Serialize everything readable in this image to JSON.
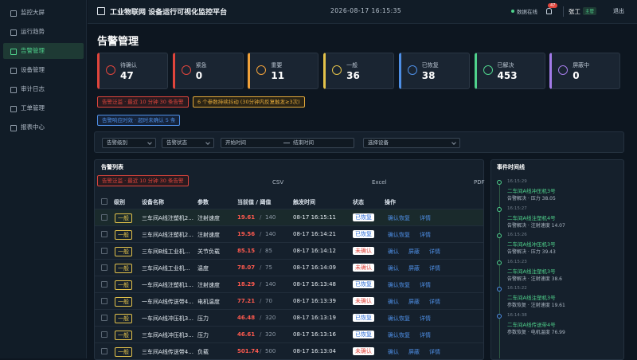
{
  "sidebar": {
    "items": [
      "监控大屏",
      "运行趋势",
      "告警管理",
      "设备管理",
      "审计日志",
      "工单管理",
      "报表中心"
    ]
  },
  "header": {
    "title": "工业物联网 设备运行可视化监控平台",
    "datetime": "2026-08-17 16:15:35",
    "status": "数据在线",
    "badge": 47,
    "user": "张工",
    "role": "主管",
    "logout": "退出"
  },
  "page": {
    "title": "告警管理"
  },
  "cards": [
    {
      "label": "待确认",
      "value": 47
    },
    {
      "label": "紧急",
      "value": 0
    },
    {
      "label": "重要",
      "value": 11
    },
    {
      "label": "一般",
      "value": 36
    },
    {
      "label": "已恢复",
      "value": 38
    },
    {
      "label": "已解决",
      "value": 453
    },
    {
      "label": "屏蔽中",
      "value": 0
    }
  ],
  "notices": [
    "告警泛滥 · 最近 10 分钟 30 条告警",
    "6 个参数持续抖动 (30分钟内反复触发≥3次)",
    "告警响应时效 · 超时未确认 5 条"
  ],
  "filters": {
    "level": "告警级别",
    "status": "告警状态",
    "start": "开始时间",
    "end": "结束时间",
    "device": "选择设备"
  },
  "alarm_table": {
    "title": "告警列表",
    "banner": "告警泛滥 · 最近 10 分钟 30 条告警",
    "exports": [
      "CSV",
      "Excel",
      "PDF"
    ],
    "columns": [
      "级别",
      "设备名称",
      "参数",
      "当前值 / 阈值",
      "触发时间",
      "状态",
      "操作"
    ],
    "rows": [
      {
        "level": "一般",
        "device": "三车间A线注塑机2...",
        "param": "注射速度",
        "current": 19.61,
        "threshold": 140,
        "time": "08-17 16:15:11",
        "status": "已恢复",
        "actions": [
          "确认恢复",
          "详情"
        ]
      },
      {
        "level": "一般",
        "device": "三车间A线注塑机2...",
        "param": "注射速度",
        "current": 19.56,
        "threshold": 140,
        "time": "08-17 16:14:21",
        "status": "已恢复",
        "actions": [
          "确认恢复",
          "详情"
        ]
      },
      {
        "level": "一般",
        "device": "三车间B线工业机...",
        "param": "关节负载",
        "current": 85.15,
        "threshold": 85,
        "time": "08-17 16:14:12",
        "status": "未确认",
        "actions": [
          "确认",
          "屏蔽",
          "详情"
        ]
      },
      {
        "level": "一般",
        "device": "三车间A线工业机...",
        "param": "温度",
        "current": 78.07,
        "threshold": 75,
        "time": "08-17 16:14:09",
        "status": "未确认",
        "actions": [
          "确认",
          "屏蔽",
          "详情"
        ]
      },
      {
        "level": "一般",
        "device": "一车间A线注塑机1...",
        "param": "注射速度",
        "current": 18.29,
        "threshold": 140,
        "time": "08-17 16:13:48",
        "status": "已恢复",
        "actions": [
          "确认恢复",
          "详情"
        ]
      },
      {
        "level": "一般",
        "device": "一车间A线传送带4...",
        "param": "电机温度",
        "current": 77.21,
        "threshold": 70,
        "time": "08-17 16:13:39",
        "status": "未确认",
        "actions": [
          "确认",
          "屏蔽",
          "详情"
        ]
      },
      {
        "level": "一般",
        "device": "一车间A线冲压机3...",
        "param": "压力",
        "current": 46.48,
        "threshold": 320,
        "time": "08-17 16:13:19",
        "status": "已恢复",
        "actions": [
          "确认恢复",
          "详情"
        ]
      },
      {
        "level": "一般",
        "device": "三车间A线冲压机3...",
        "param": "压力",
        "current": 46.61,
        "threshold": 320,
        "time": "08-17 16:13:16",
        "status": "已恢复",
        "actions": [
          "确认恢复",
          "详情"
        ]
      },
      {
        "level": "一般",
        "device": "三车间A线传送带4...",
        "param": "负载",
        "current": 501.74,
        "threshold": 500,
        "time": "08-17 16:13:04",
        "status": "未确认",
        "actions": [
          "确认",
          "屏蔽",
          "详情"
        ]
      }
    ]
  },
  "timeline": {
    "title": "事件时间线",
    "events": [
      {
        "time": "16:15:29",
        "device": "二车间A线冲压机3号",
        "detail": "告警解决 · 压力 38.05"
      },
      {
        "time": "16:15:27",
        "device": "二车间A线注塑机4号",
        "detail": "告警解决 · 注射速度 14.07"
      },
      {
        "time": "16:15:26",
        "device": "二车间A线冲压机3号",
        "detail": "告警解决 · 压力 39.43"
      },
      {
        "time": "16:15:23",
        "device": "二车间A线注塑机3号",
        "detail": "告警解决 · 注射速度 38.6"
      },
      {
        "time": "16:15:22",
        "device": "二车间A线注塑机3号",
        "detail": "参数恢复 · 注射速度 19.61"
      },
      {
        "time": "16:14:38",
        "device": "二车间A线传送带4号",
        "detail": "参数恢复 · 电机温度 76.99"
      }
    ]
  }
}
